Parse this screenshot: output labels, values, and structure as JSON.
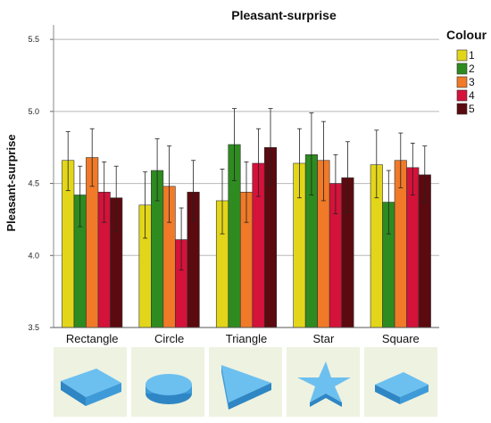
{
  "chart_data": {
    "type": "bar",
    "title": "Pleasant-surprise",
    "ylabel": "Pleasant-surprise",
    "xlabel": "",
    "ylim": [
      3.5,
      5.6
    ],
    "yticks": [
      "3.5",
      "4.0",
      "4.5",
      "5.0",
      "5.5"
    ],
    "ytick_values": [
      3.5,
      4.0,
      4.5,
      5.0,
      5.5
    ],
    "grid": true,
    "legend_title": "Colour",
    "legend_position": "right",
    "categories": [
      "Rectangle",
      "Circle",
      "Triangle",
      "Star",
      "Square"
    ],
    "series": [
      {
        "name": "1",
        "color": "#e3d61a",
        "values": [
          4.66,
          4.35,
          4.38,
          4.64,
          4.63
        ],
        "err_low": [
          4.45,
          4.12,
          4.15,
          4.4,
          4.4
        ],
        "err_high": [
          4.86,
          4.58,
          4.6,
          4.88,
          4.87
        ]
      },
      {
        "name": "2",
        "color": "#2e8b20",
        "values": [
          4.42,
          4.59,
          4.77,
          4.7,
          4.37
        ],
        "err_low": [
          4.2,
          4.38,
          4.52,
          4.42,
          4.15
        ],
        "err_high": [
          4.62,
          4.81,
          5.02,
          4.99,
          4.59
        ]
      },
      {
        "name": "3",
        "color": "#f07a28",
        "values": [
          4.68,
          4.48,
          4.44,
          4.66,
          4.66
        ],
        "err_low": [
          4.48,
          4.23,
          4.23,
          4.38,
          4.47
        ],
        "err_high": [
          4.88,
          4.76,
          4.65,
          4.93,
          4.85
        ]
      },
      {
        "name": "4",
        "color": "#d4123a",
        "values": [
          4.44,
          4.11,
          4.64,
          4.5,
          4.61
        ],
        "err_low": [
          4.23,
          3.9,
          4.41,
          4.29,
          4.42
        ],
        "err_high": [
          4.65,
          4.33,
          4.88,
          4.7,
          4.78
        ]
      },
      {
        "name": "5",
        "color": "#5b0a0f",
        "values": [
          4.4,
          4.44,
          4.75,
          4.54,
          4.56
        ],
        "err_low": [
          4.17,
          4.24,
          4.49,
          4.3,
          4.37
        ],
        "err_high": [
          4.62,
          4.66,
          5.02,
          4.79,
          4.76
        ]
      }
    ]
  },
  "thumbnails": [
    {
      "shape": "rectangle-shape",
      "color": "#4aa8e2"
    },
    {
      "shape": "circle-shape",
      "color": "#4aa8e2"
    },
    {
      "shape": "triangle-shape",
      "color": "#4aa8e2"
    },
    {
      "shape": "star-shape",
      "color": "#4aa8e2"
    },
    {
      "shape": "square-shape",
      "color": "#4aa8e2"
    }
  ]
}
